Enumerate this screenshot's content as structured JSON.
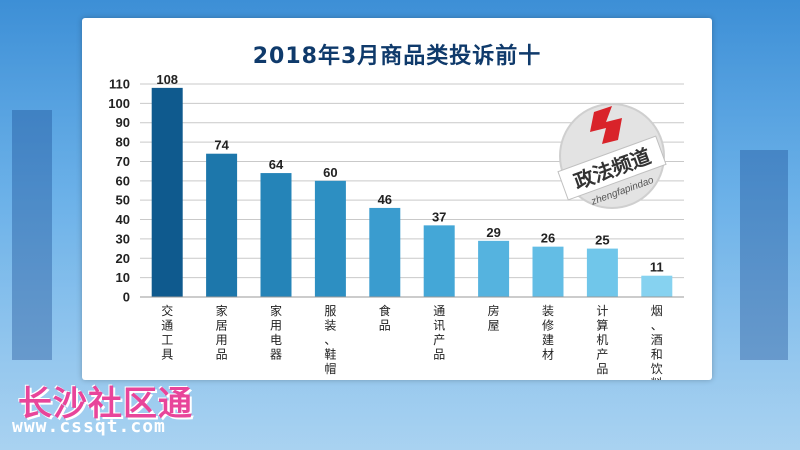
{
  "chart_data": {
    "type": "bar",
    "title": "2018年3月商品类投诉前十",
    "categories": [
      "交通工具",
      "家居用品",
      "家用电器",
      "服装、鞋帽",
      "食品",
      "通讯产品",
      "房屋",
      "装修建材",
      "计算机产品",
      "烟、酒和饮料"
    ],
    "values": [
      108,
      74,
      64,
      60,
      46,
      37,
      29,
      26,
      25,
      11
    ],
    "ylim": [
      0,
      110
    ],
    "yticks": [
      0,
      10,
      20,
      30,
      40,
      50,
      60,
      70,
      80,
      90,
      100,
      110
    ],
    "grid": true,
    "bar_colors": [
      "#0f5a8e",
      "#1d77ab",
      "#2584b8",
      "#2d8fc2",
      "#3a9ccf",
      "#44a7d7",
      "#55b3df",
      "#63bde5",
      "#70c6ea",
      "#86d2f0"
    ]
  },
  "logo": {
    "name": "政法频道",
    "pinyin": "zhengfapindao",
    "mark_color": "#d9232a"
  },
  "watermark": {
    "name": "长沙社区通",
    "url": "www.cssqt.com",
    "color": "#e8459a"
  }
}
